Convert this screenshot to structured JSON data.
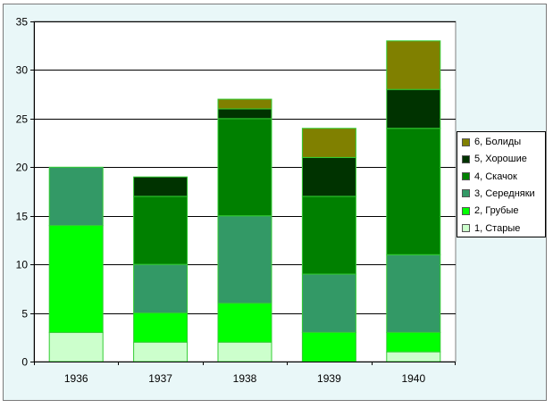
{
  "chart_data": {
    "type": "bar",
    "stacked": true,
    "categories": [
      "1936",
      "1937",
      "1938",
      "1939",
      "1940"
    ],
    "ylim": [
      0,
      35
    ],
    "yticks": [
      "0",
      "5",
      "10",
      "15",
      "20",
      "25",
      "30",
      "35"
    ],
    "ytick_values": [
      0,
      5,
      10,
      15,
      20,
      25,
      30,
      35
    ],
    "grid": true,
    "legend_position": "right",
    "series": [
      {
        "name": "1, Старые",
        "color": "#ccffcc",
        "values": [
          3,
          2,
          2,
          0,
          1
        ]
      },
      {
        "name": "2, Грубые",
        "color": "#00ff00",
        "values": [
          11,
          3,
          4,
          3,
          2
        ]
      },
      {
        "name": "3, Середняки",
        "color": "#339966",
        "values": [
          6,
          5,
          9,
          6,
          8
        ]
      },
      {
        "name": "4, Скачок",
        "color": "#008000",
        "values": [
          0,
          7,
          10,
          8,
          13
        ]
      },
      {
        "name": "5, Хорошие",
        "color": "#003300",
        "values": [
          0,
          2,
          1,
          4,
          4
        ]
      },
      {
        "name": "6, Болиды",
        "color": "#808000",
        "values": [
          0,
          0,
          1,
          3,
          5
        ]
      }
    ]
  }
}
